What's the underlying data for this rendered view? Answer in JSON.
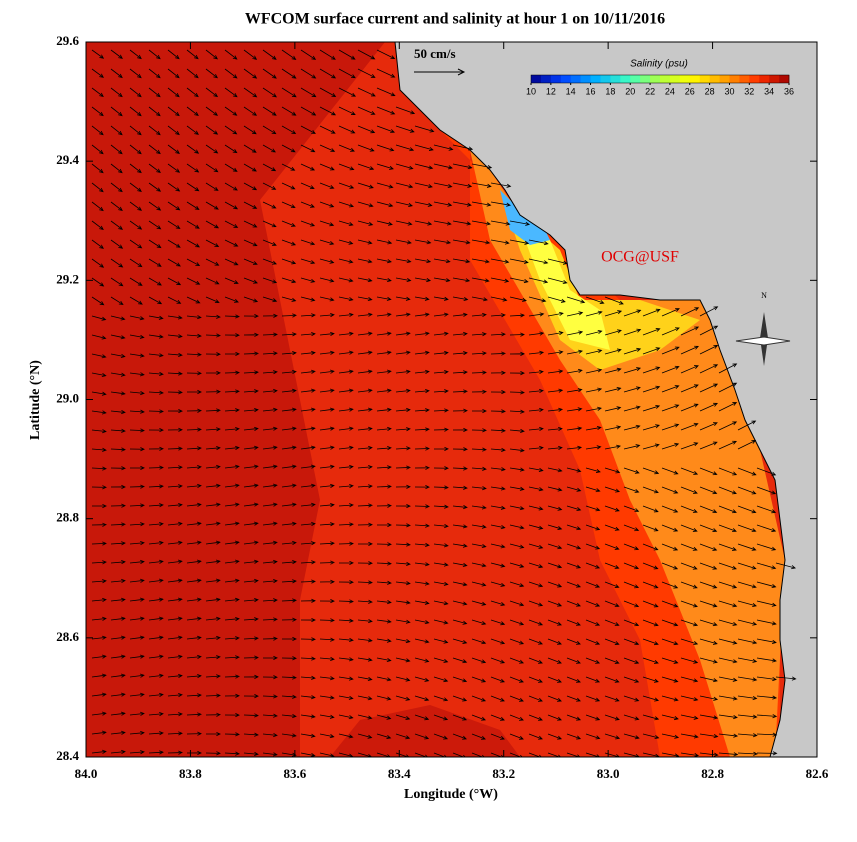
{
  "chart_data": {
    "type": "map",
    "title": "WFCOM surface current and salinity at hour 1 on 10/11/2016",
    "x_label": "Longitude (°W)",
    "y_label": "Latitude (°N)",
    "xlim": [
      84.0,
      82.6
    ],
    "ylim": [
      28.4,
      29.6
    ],
    "xticks": [
      {
        "value": 84,
        "label": "84.0"
      },
      83.8,
      83.6,
      83.4,
      83.2,
      {
        "value": 83,
        "label": "83.0"
      },
      82.8,
      82.6
    ],
    "yticks": [
      28.4,
      28.6,
      28.8,
      {
        "value": 29,
        "label": "29.0"
      },
      29.2,
      29.4,
      29.6
    ],
    "colorbar": {
      "title": "Salinity (psu)",
      "lim": [
        10,
        36
      ],
      "ticks": [
        10,
        12,
        14,
        16,
        18,
        20,
        22,
        24,
        26,
        28,
        30,
        32,
        34,
        36
      ]
    },
    "scale_label": "50 cm/s",
    "credit": "OCG@USF",
    "compass": "N"
  }
}
